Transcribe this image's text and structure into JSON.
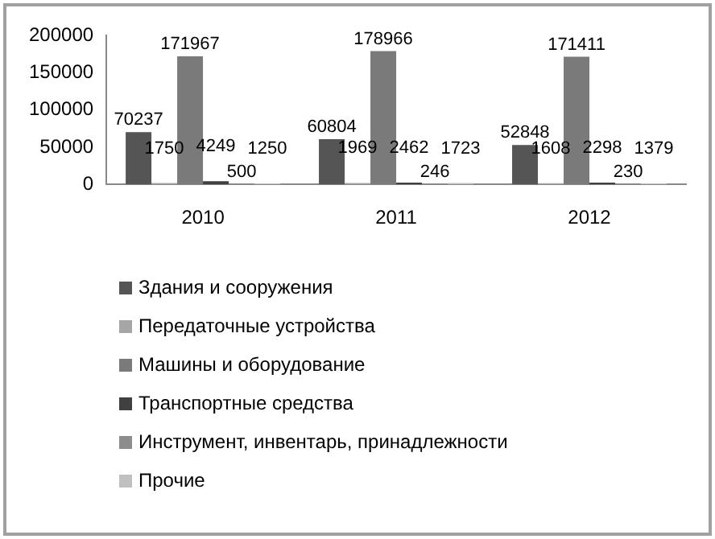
{
  "chart_data": {
    "type": "bar",
    "categories": [
      "2010",
      "2011",
      "2012"
    ],
    "series": [
      {
        "name": "Здания и сооружения",
        "color": "#555555",
        "values": [
          70237,
          60804,
          52848
        ]
      },
      {
        "name": "Передаточные устройства",
        "color": "#a6a6a6",
        "values": [
          1750,
          1969,
          1608
        ]
      },
      {
        "name": "Машины и оборудование",
        "color": "#7a7a7a",
        "values": [
          171967,
          178966,
          171411
        ]
      },
      {
        "name": "Транспортные средства",
        "color": "#404040",
        "values": [
          4249,
          2462,
          2298
        ]
      },
      {
        "name": "Инструмент, инвентарь, принадлежности",
        "color": "#8c8c8c",
        "values": [
          500,
          246,
          230
        ]
      },
      {
        "name": "Прочие",
        "color": "#c0c0c0",
        "values": [
          1250,
          1723,
          1379
        ]
      }
    ],
    "ylim": [
      0,
      200000
    ],
    "yticks": [
      0,
      50000,
      100000,
      150000,
      200000
    ],
    "grid": false,
    "legend": "bottom",
    "data_labels": true
  }
}
